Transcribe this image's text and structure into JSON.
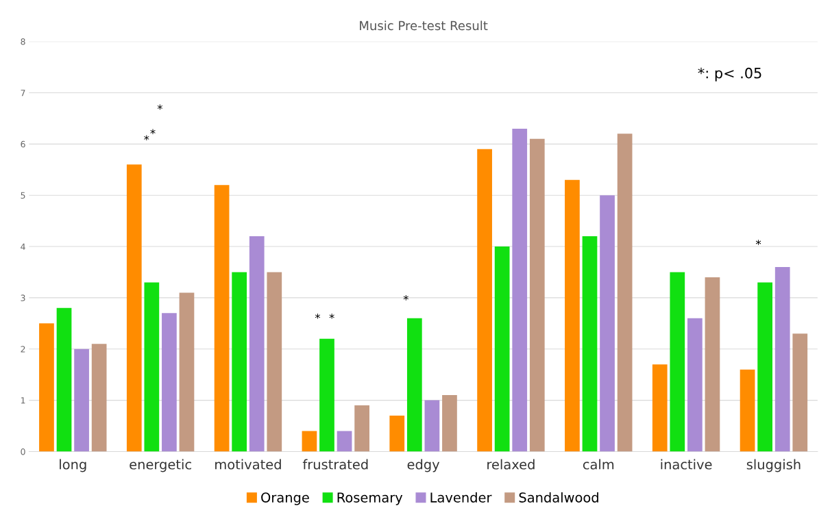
{
  "chart_data": {
    "type": "bar",
    "title": "Music Pre-test Result",
    "categories": [
      "long",
      "energetic",
      "motivated",
      "frustrated",
      "edgy",
      "relaxed",
      "calm",
      "inactive",
      "sluggish"
    ],
    "series": [
      {
        "name": "Orange",
        "color": "#ff8c00",
        "values": [
          2.5,
          5.6,
          5.2,
          0.4,
          0.7,
          5.9,
          5.3,
          1.7,
          1.6
        ]
      },
      {
        "name": "Rosemary",
        "color": "#11e011",
        "values": [
          2.8,
          3.3,
          3.5,
          2.2,
          2.6,
          4.0,
          4.2,
          3.5,
          3.3
        ]
      },
      {
        "name": "Lavender",
        "color": "#a98bd4",
        "values": [
          2.0,
          2.7,
          4.2,
          0.4,
          1.0,
          6.3,
          5.0,
          2.6,
          3.6
        ]
      },
      {
        "name": "Sandalwood",
        "color": "#c39a82",
        "values": [
          2.1,
          3.1,
          3.5,
          0.9,
          1.1,
          6.1,
          6.2,
          3.4,
          2.3
        ]
      }
    ],
    "ylim": [
      0,
      8
    ],
    "yticks": [
      0,
      1,
      2,
      3,
      4,
      5,
      6,
      7,
      8
    ],
    "grid": "y",
    "legend": "bottom",
    "annotations": [
      "*: p< .05",
      "*",
      "*",
      "*",
      "*",
      "*",
      "*",
      "*"
    ]
  }
}
